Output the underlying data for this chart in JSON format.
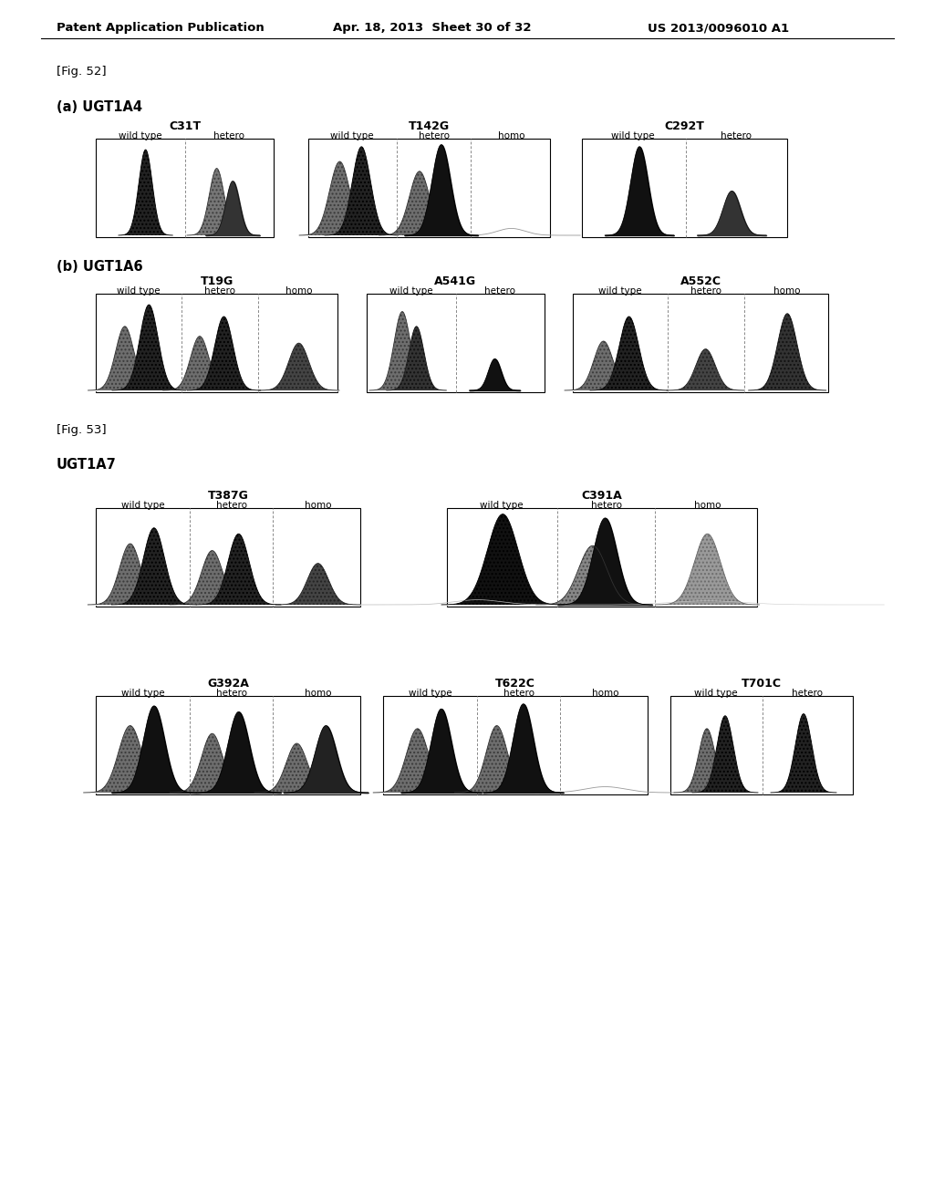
{
  "header_left": "Patent Application Publication",
  "header_mid": "Apr. 18, 2013  Sheet 30 of 32",
  "header_right": "US 2013/0096010 A1",
  "fig52_label": "[Fig. 52]",
  "fig53_label": "[Fig. 53]",
  "section_a_label": "(a) UGT1A4",
  "section_b_label": "(b) UGT1A6",
  "section_c_label": "UGT1A7",
  "bg_color": "#ffffff"
}
